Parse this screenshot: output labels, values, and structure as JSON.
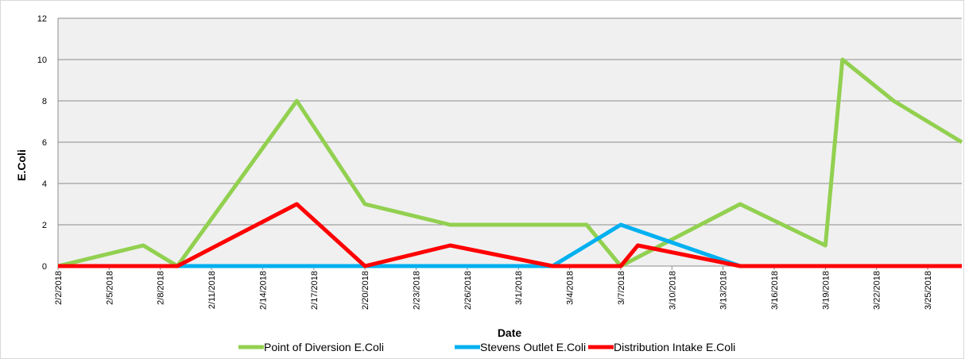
{
  "chart_data": {
    "type": "line",
    "y_label": "E.Coli",
    "x_label": "Date",
    "xlim": [
      "2/2/2018",
      "3/27/2018"
    ],
    "xticks": [
      "2/2/2018",
      "2/5/2018",
      "2/8/2018",
      "2/11/2018",
      "2/14/2018",
      "2/17/2018",
      "2/20/2018",
      "2/23/2018",
      "2/26/2018",
      "3/1/2018",
      "3/4/2018",
      "3/7/2018",
      "3/10/2018",
      "3/13/2018",
      "3/16/2018",
      "3/19/2018",
      "3/22/2018",
      "3/25/2018"
    ],
    "ylim": [
      0,
      12
    ],
    "yticks": [
      0,
      2,
      4,
      6,
      8,
      10,
      12
    ],
    "grid": true,
    "series": [
      {
        "name": "Point of Diversion E.Coli",
        "color": "#92d050",
        "x": [
          "2/2/2018",
          "2/7/2018",
          "2/9/2018",
          "2/16/2018",
          "2/20/2018",
          "2/25/2018",
          "3/5/2018",
          "3/7/2018",
          "3/14/2018",
          "3/19/2018",
          "3/20/2018",
          "3/23/2018",
          "3/27/2018"
        ],
        "values": [
          0,
          1,
          0,
          8,
          3,
          2,
          2,
          0,
          3,
          1,
          10,
          8,
          6
        ]
      },
      {
        "name": "Stevens Outlet E.Coli",
        "color": "#00b0f0",
        "x": [
          "2/9/2018",
          "2/20/2018",
          "2/25/2018",
          "3/3/2018",
          "3/7/2018",
          "3/14/2018",
          "3/19/2018",
          "3/27/2018"
        ],
        "values": [
          0,
          0,
          0,
          0,
          2,
          0,
          0,
          0
        ]
      },
      {
        "name": "Distribution Intake E.Coli",
        "color": "#ff0000",
        "x": [
          "2/2/2018",
          "2/9/2018",
          "2/16/2018",
          "2/20/2018",
          "2/25/2018",
          "3/3/2018",
          "3/7/2018",
          "3/8/2018",
          "3/14/2018",
          "3/19/2018",
          "3/27/2018"
        ],
        "values": [
          0,
          0,
          3,
          0,
          1,
          0,
          0,
          1,
          0,
          0,
          0
        ]
      }
    ]
  }
}
